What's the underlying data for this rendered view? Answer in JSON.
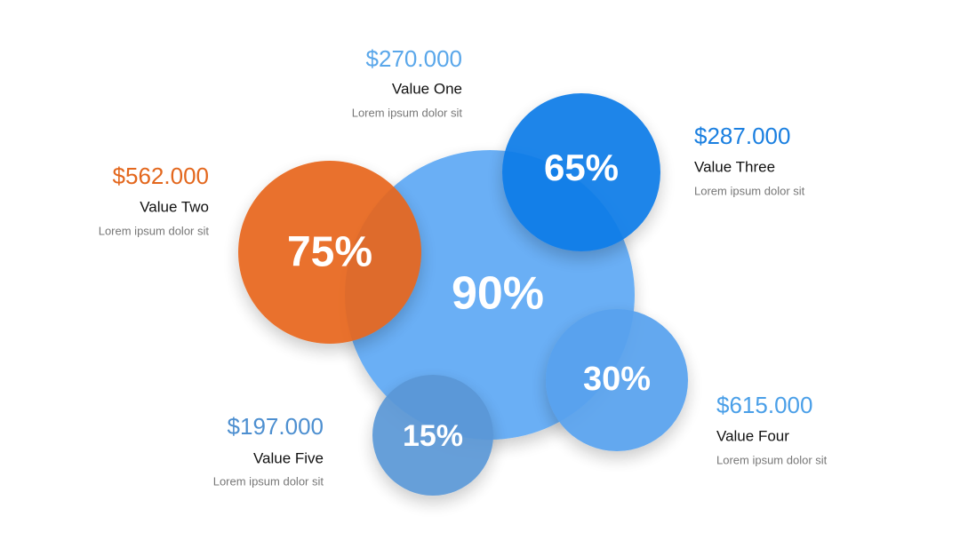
{
  "bubbles": [
    {
      "label": "90%"
    },
    {
      "label": "75%"
    },
    {
      "label": "65%"
    },
    {
      "label": "30%"
    },
    {
      "label": "15%"
    }
  ],
  "items": [
    {
      "amount": "$270.000",
      "name": "Value One",
      "desc": "Lorem ipsum dolor sit"
    },
    {
      "amount": "$562.000",
      "name": "Value Two",
      "desc": "Lorem ipsum dolor sit"
    },
    {
      "amount": "$287.000",
      "name": "Value Three",
      "desc": "Lorem ipsum dolor sit"
    },
    {
      "amount": "$615.000",
      "name": "Value Four",
      "desc": "Lorem ipsum dolor sit"
    },
    {
      "amount": "$197.000",
      "name": "Value Five",
      "desc": "Lorem ipsum dolor sit"
    }
  ]
}
